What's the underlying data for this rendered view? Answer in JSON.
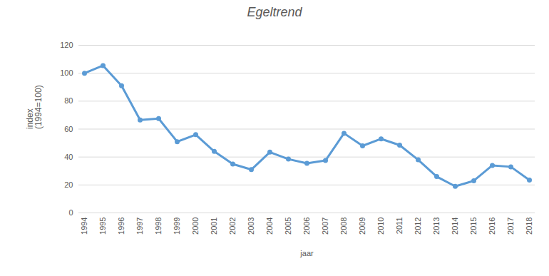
{
  "chart_data": {
    "type": "line",
    "title": "Egeltrend",
    "x_label": "jaar",
    "y_label": "index\n(1994=100)",
    "categories": [
      "1994",
      "1995",
      "1996",
      "1997",
      "1998",
      "1999",
      "2000",
      "2001",
      "2002",
      "2003",
      "2004",
      "2005",
      "2006",
      "2007",
      "2008",
      "2009",
      "2010",
      "2011",
      "2012",
      "2013",
      "2014",
      "2015",
      "2016",
      "2017",
      "2018"
    ],
    "values": [
      100,
      105.5,
      91,
      66.5,
      67.5,
      51,
      56,
      44,
      35,
      31,
      43.5,
      38.5,
      35.5,
      37.5,
      57,
      48,
      53,
      48.5,
      38,
      26,
      19,
      23,
      34,
      33,
      23.5
    ],
    "color": "#5b9bd5",
    "marker": "circle",
    "line_style": "solid",
    "ylim": [
      0,
      120
    ],
    "yticks": [
      0,
      20,
      40,
      60,
      80,
      100,
      120
    ],
    "grid": true
  }
}
